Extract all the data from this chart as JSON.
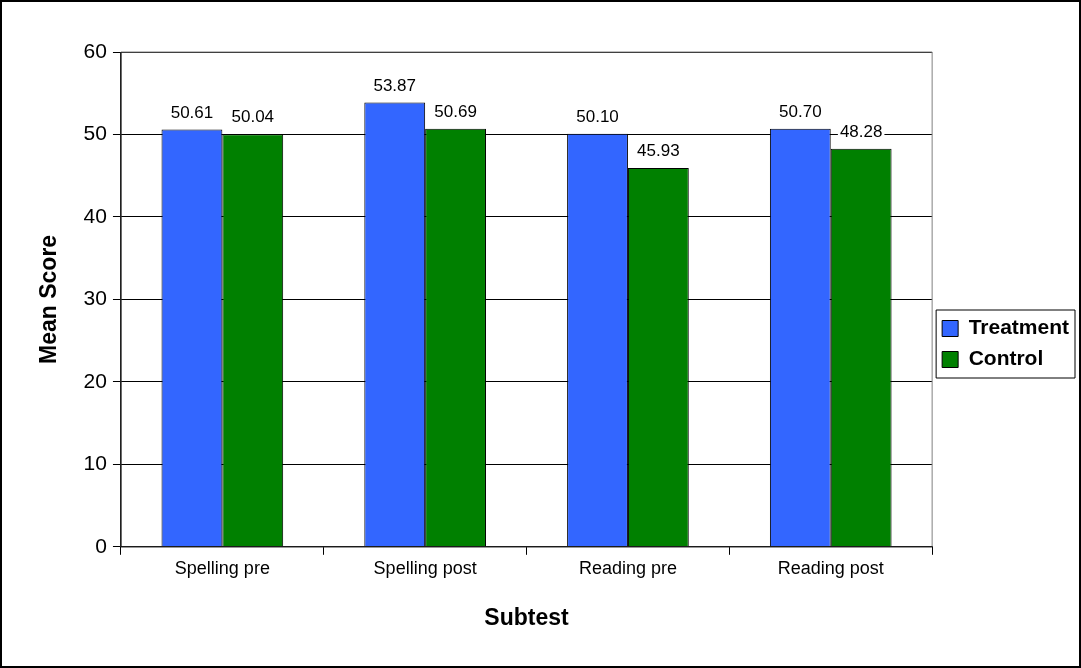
{
  "chart_data": {
    "type": "bar",
    "xlabel": "Subtest",
    "ylabel": "Mean Score",
    "categories": [
      "Spelling pre",
      "Spelling post",
      "Reading pre",
      "Reading post"
    ],
    "series": [
      {
        "name": "Treatment",
        "color": "#3366ff",
        "values": [
          50.61,
          53.87,
          50.1,
          50.7
        ],
        "value_labels": [
          "50.61",
          "53.87",
          "50.10",
          "50.70"
        ]
      },
      {
        "name": "Control",
        "color": "#008000",
        "values": [
          50.04,
          50.69,
          45.93,
          48.28
        ],
        "value_labels": [
          "50.04",
          "50.69",
          "45.93",
          "48.28"
        ]
      }
    ],
    "ylim": [
      0,
      60
    ],
    "yticks": [
      0,
      10,
      20,
      30,
      40,
      50,
      60
    ],
    "grid": "y",
    "legend": "right"
  }
}
